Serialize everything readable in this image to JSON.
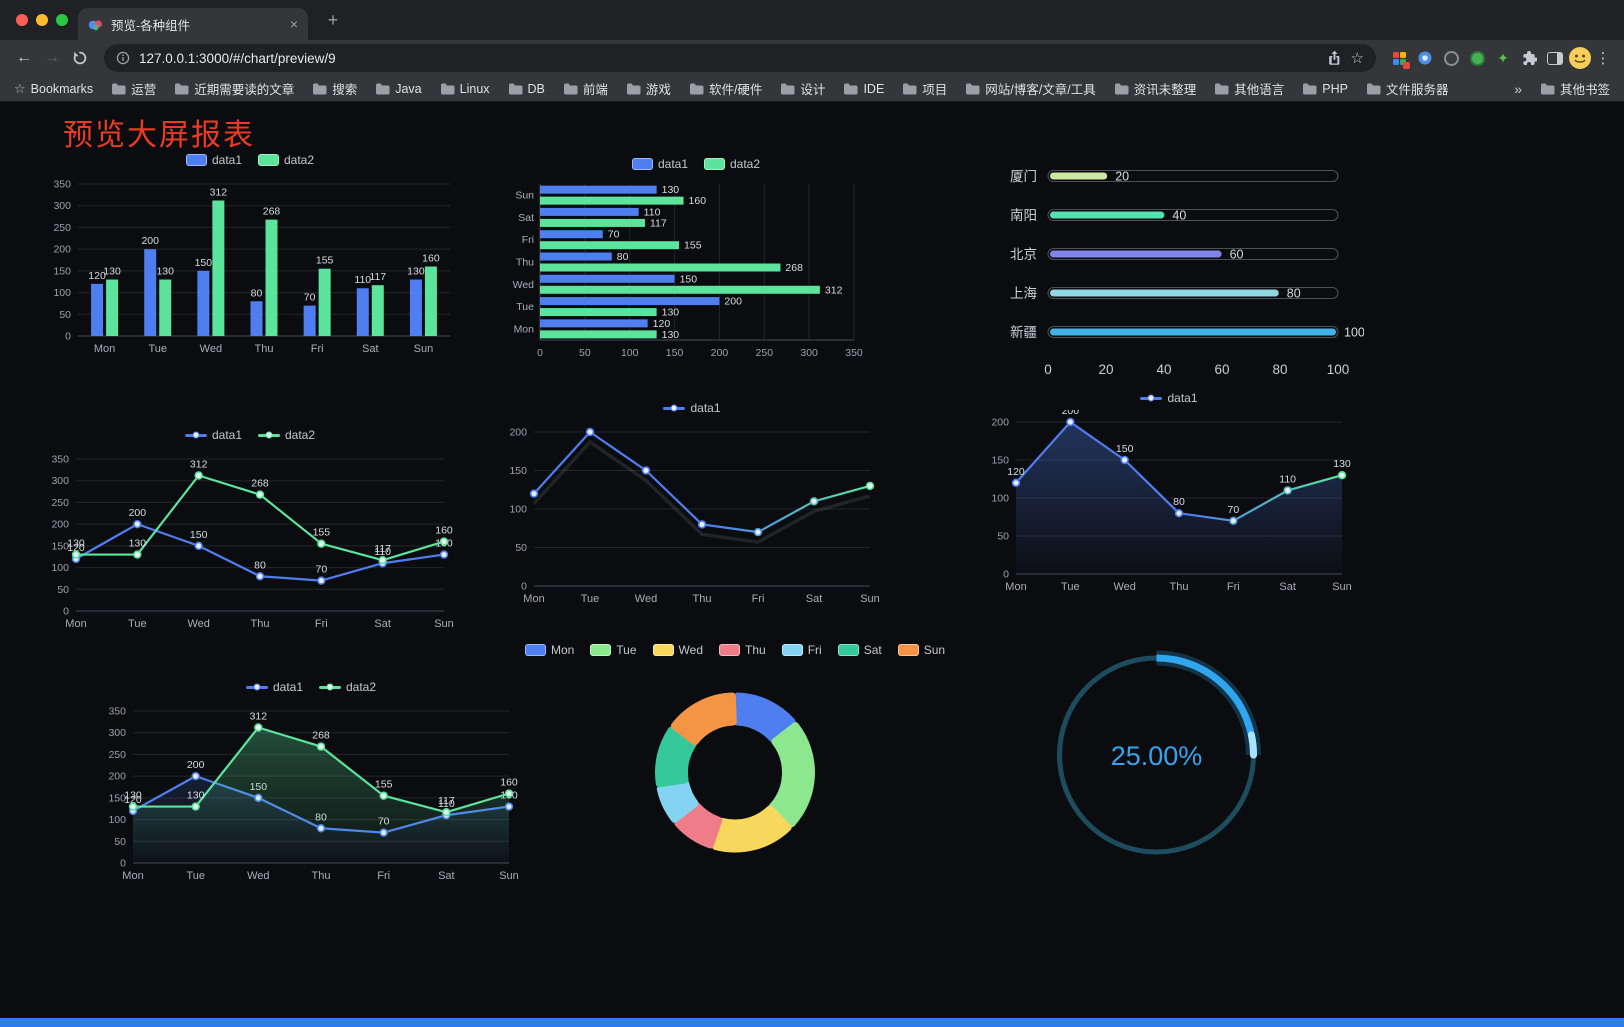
{
  "browser": {
    "tab_title": "预览-各种组件",
    "url": "127.0.0.1:3000/#/chart/preview/9",
    "new_tab_label": "+",
    "close_tab_label": "×",
    "bookmarks": [
      "Bookmarks",
      "运营",
      "近期需要读的文章",
      "搜索",
      "Java",
      "Linux",
      "DB",
      "前端",
      "游戏",
      "软件/硬件",
      "设计",
      "IDE",
      "项目",
      "网站/博客/文章/工具",
      "资讯未整理",
      "其他语言",
      "PHP",
      "文件服务器",
      "»",
      "其他书签"
    ]
  },
  "page": {
    "title": "预览大屏报表"
  },
  "chart_data": [
    {
      "id": "grouped-bar",
      "type": "bar",
      "categories": [
        "Mon",
        "Tue",
        "Wed",
        "Thu",
        "Fri",
        "Sat",
        "Sun"
      ],
      "series": [
        {
          "name": "data1",
          "color": "#4e7ef0",
          "values": [
            120,
            200,
            150,
            80,
            70,
            110,
            130
          ]
        },
        {
          "name": "data2",
          "color": "#5ce49c",
          "values": [
            130,
            130,
            312,
            268,
            155,
            117,
            160
          ]
        }
      ],
      "ylim": [
        0,
        350
      ],
      "yticks": [
        0,
        50,
        100,
        150,
        200,
        250,
        300,
        350
      ],
      "legend_position": "top",
      "grid": true
    },
    {
      "id": "horizontal-bar",
      "type": "hbar",
      "categories": [
        "Mon",
        "Tue",
        "Wed",
        "Thu",
        "Fri",
        "Sat",
        "Sun"
      ],
      "series": [
        {
          "name": "data1",
          "color": "#4e7ef0",
          "values": [
            120,
            200,
            150,
            80,
            70,
            110,
            130
          ]
        },
        {
          "name": "data2",
          "color": "#5ce49c",
          "values": [
            130,
            130,
            312,
            268,
            155,
            117,
            160
          ]
        }
      ],
      "xlim": [
        0,
        350
      ],
      "xticks": [
        0,
        50,
        100,
        150,
        200,
        250,
        300,
        350
      ],
      "legend_position": "top",
      "grid": true
    },
    {
      "id": "city-progress",
      "type": "progress",
      "max": 100,
      "xticks": [
        0,
        20,
        40,
        60,
        80,
        100
      ],
      "rows": [
        {
          "label": "厦门",
          "value": 20,
          "color": "#cde8a2"
        },
        {
          "label": "南阳",
          "value": 40,
          "color": "#55e0b0"
        },
        {
          "label": "北京",
          "value": 60,
          "color": "#8184e8"
        },
        {
          "label": "上海",
          "value": 80,
          "color": "#8fd6e0"
        },
        {
          "label": "新疆",
          "value": 100,
          "color": "#41b1e8"
        }
      ]
    },
    {
      "id": "two-line",
      "type": "line",
      "categories": [
        "Mon",
        "Tue",
        "Wed",
        "Thu",
        "Fri",
        "Sat",
        "Sun"
      ],
      "series": [
        {
          "name": "data1",
          "color": "#4e7ef0",
          "values": [
            120,
            200,
            150,
            80,
            70,
            110,
            130
          ],
          "labels": true
        },
        {
          "name": "data2",
          "color": "#5ce49c",
          "values": [
            130,
            130,
            312,
            268,
            155,
            117,
            160
          ],
          "labels": true
        }
      ],
      "ylim": [
        0,
        350
      ],
      "yticks": [
        0,
        50,
        100,
        150,
        200,
        250,
        300,
        350
      ],
      "legend_position": "top",
      "grid": true
    },
    {
      "id": "gradient-line",
      "type": "line",
      "categories": [
        "Mon",
        "Tue",
        "Wed",
        "Thu",
        "Fri",
        "Sat",
        "Sun"
      ],
      "series": [
        {
          "name": "data1",
          "color": "#4e7ef0",
          "gradient": [
            "#4e7ef0",
            "#5ce49c"
          ],
          "values": [
            120,
            200,
            150,
            80,
            70,
            110,
            130
          ],
          "shadow": true
        }
      ],
      "ylim": [
        0,
        200
      ],
      "yticks": [
        0,
        50,
        100,
        150,
        200
      ],
      "legend_position": "top",
      "grid": true
    },
    {
      "id": "area-line",
      "type": "line",
      "categories": [
        "Mon",
        "Tue",
        "Wed",
        "Thu",
        "Fri",
        "Sat",
        "Sun"
      ],
      "series": [
        {
          "name": "data1",
          "color": "#4e7ef0",
          "gradient": [
            "#4e7ef0",
            "#5ce49c"
          ],
          "values": [
            120,
            200,
            150,
            80,
            70,
            110,
            130
          ],
          "area": true,
          "area_opacity": 0.35,
          "labels": true
        }
      ],
      "ylim": [
        0,
        200
      ],
      "yticks": [
        0,
        50,
        100,
        150,
        200
      ],
      "legend_position": "top",
      "grid": true
    },
    {
      "id": "two-line-area",
      "type": "line",
      "categories": [
        "Mon",
        "Tue",
        "Wed",
        "Thu",
        "Fri",
        "Sat",
        "Sun"
      ],
      "series": [
        {
          "name": "data1",
          "color": "#4e7ef0",
          "values": [
            120,
            200,
            150,
            80,
            70,
            110,
            130
          ],
          "area": true,
          "area_opacity": 0.16,
          "labels": true
        },
        {
          "name": "data2",
          "color": "#5ce49c",
          "values": [
            130,
            130,
            312,
            268,
            155,
            117,
            160
          ],
          "area": true,
          "area_opacity": 0.3,
          "labels": true
        }
      ],
      "ylim": [
        0,
        350
      ],
      "yticks": [
        0,
        50,
        100,
        150,
        200,
        250,
        300,
        350
      ],
      "legend_position": "top",
      "grid": true
    },
    {
      "id": "weekday-donut",
      "type": "donut",
      "legend_position": "top",
      "slices": [
        {
          "label": "Mon",
          "value": 120,
          "color": "#4e7ef0"
        },
        {
          "label": "Tue",
          "value": 200,
          "color": "#8ce78f"
        },
        {
          "label": "Wed",
          "value": 150,
          "color": "#f7d75c"
        },
        {
          "label": "Thu",
          "value": 80,
          "color": "#ef7d89"
        },
        {
          "label": "Fri",
          "value": 70,
          "color": "#85d3f3"
        },
        {
          "label": "Sat",
          "value": 110,
          "color": "#35c89b"
        },
        {
          "label": "Sun",
          "value": 130,
          "color": "#f69446"
        }
      ]
    },
    {
      "id": "percent-gauge",
      "type": "gauge",
      "value": 25,
      "display": "25.00%",
      "color": "#2fa6ef",
      "track_color": "#1c4c5e",
      "tail_color": "#a5e3ff"
    }
  ]
}
